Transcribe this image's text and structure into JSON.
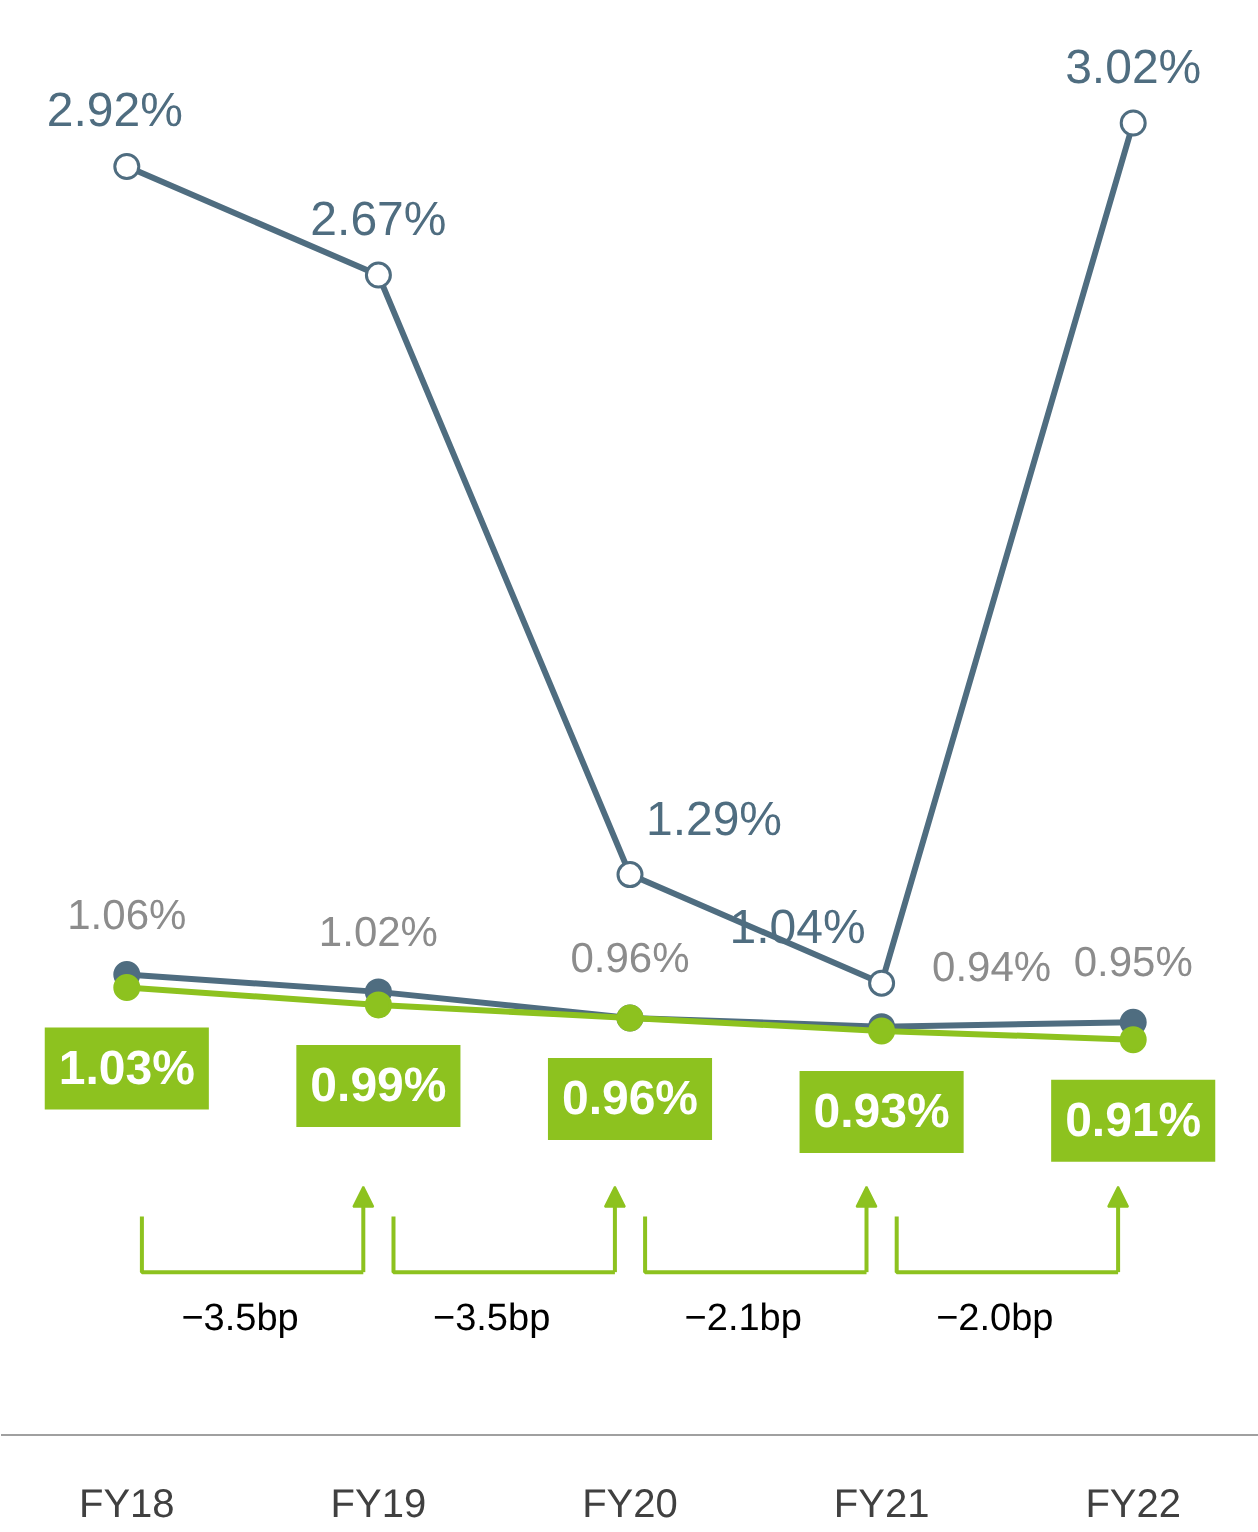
{
  "chart_data": {
    "type": "line",
    "categories": [
      "FY18",
      "FY19",
      "FY20",
      "FY21",
      "FY22"
    ],
    "series": [
      {
        "color": "#4f6d80",
        "values": [
          2.92,
          2.67,
          1.29,
          1.04,
          3.02
        ],
        "marker": "circle",
        "value_labels": [
          "2.92%",
          "2.67%",
          "1.29%",
          "1.04%",
          "3.02%"
        ]
      },
      {
        "color": "#4f6d80",
        "values": [
          1.06,
          1.02,
          0.96,
          0.94,
          0.95
        ],
        "marker": "circle",
        "value_labels": [
          "1.06%",
          "1.02%",
          "0.96%",
          "0.94%",
          "0.95%"
        ]
      },
      {
        "color": "#8dc21f",
        "values": [
          1.03,
          0.99,
          0.96,
          0.93,
          0.91
        ],
        "marker": "circle",
        "value_labels": [
          "1.03%",
          "0.99%",
          "0.96%",
          "0.93%",
          "0.91%"
        ]
      }
    ],
    "annotations": [
      "−3.5bp",
      "−3.5bp",
      "−2.1bp",
      "−2.0bp"
    ],
    "grid": false,
    "tick_labels": "x",
    "line_style": "solid"
  }
}
